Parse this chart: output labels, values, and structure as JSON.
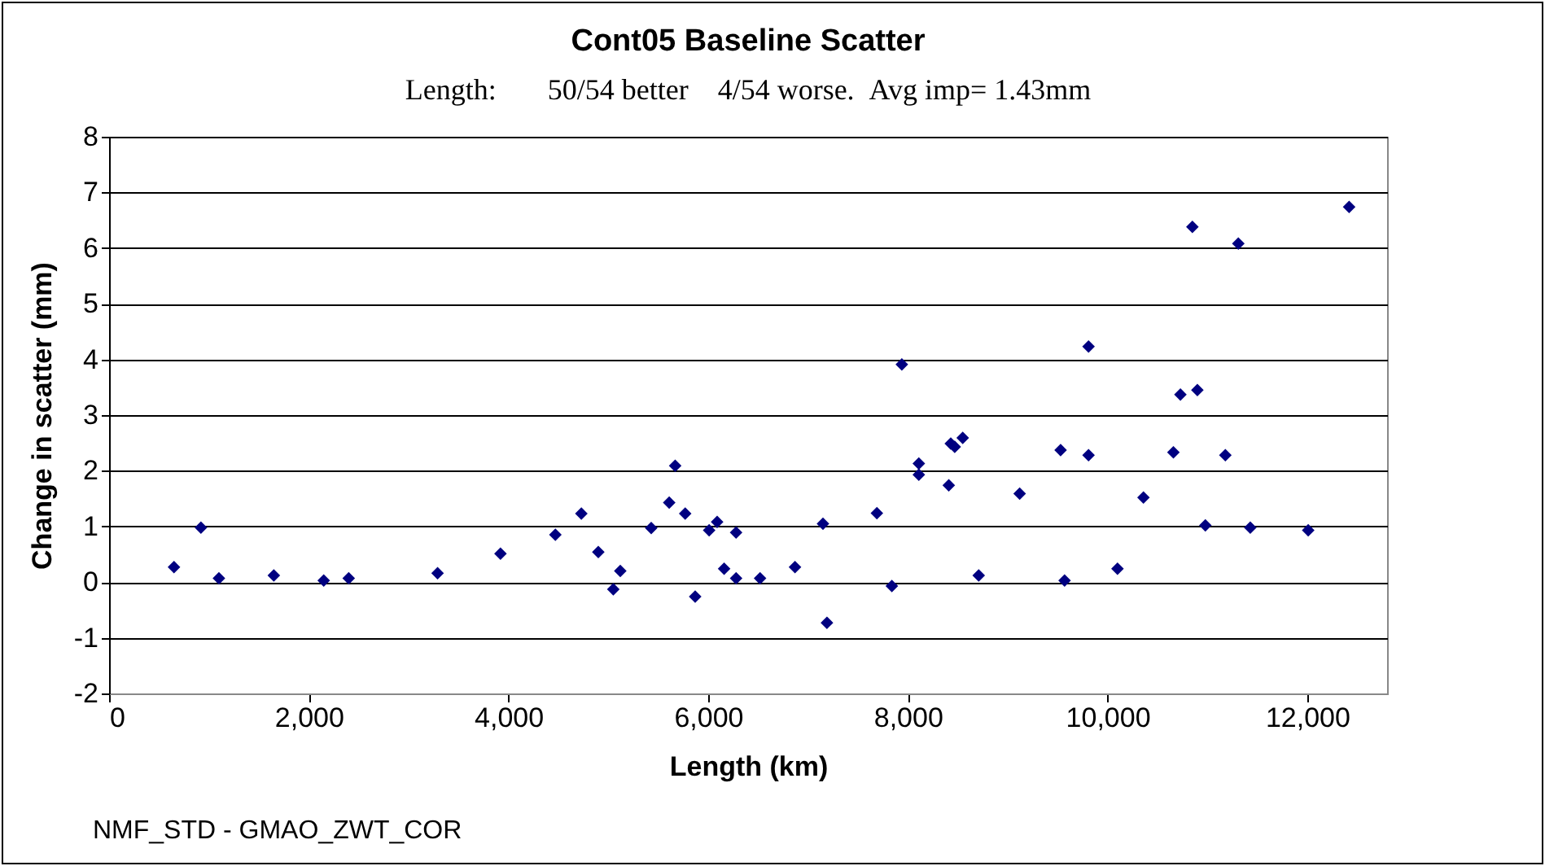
{
  "chart_data": {
    "type": "scatter",
    "title": "Cont05 Baseline Scatter",
    "subtitle": "Length:       50/54 better    4/54 worse.  Avg imp= 1.43mm",
    "xlabel": "Length (km)",
    "ylabel": "Change in scatter (mm)",
    "annotations": [
      "NMF_STD - GMAO_ZWT_COR"
    ],
    "x": [
      650,
      920,
      1100,
      1650,
      2150,
      2400,
      3290,
      3920,
      4470,
      4730,
      4900,
      5050,
      5120,
      5430,
      5610,
      5670,
      5770,
      5870,
      6010,
      6090,
      6160,
      6280,
      6280,
      6520,
      6870,
      7150,
      7190,
      7690,
      7840,
      7940,
      8110,
      8110,
      8410,
      8430,
      8470,
      8550,
      8710,
      9120,
      9530,
      9570,
      9810,
      9810,
      10100,
      10360,
      10660,
      10730,
      10850,
      10900,
      10980,
      11180,
      11310,
      11430,
      12010,
      12420
    ],
    "series": [
      {
        "color": "#000080",
        "values": [
          0.27,
          0.98,
          0.07,
          0.12,
          0.03,
          0.07,
          0.16,
          0.51,
          0.85,
          1.23,
          0.54,
          -0.13,
          0.2,
          0.97,
          1.43,
          2.09,
          1.23,
          -0.26,
          0.93,
          1.08,
          0.24,
          0.89,
          0.07,
          0.07,
          0.27,
          1.05,
          -0.73,
          1.24,
          -0.07,
          3.91,
          2.13,
          1.93,
          1.74,
          2.49,
          2.43,
          2.59,
          0.12,
          1.59,
          2.37,
          0.03,
          4.23,
          2.28,
          0.24,
          1.52,
          2.33,
          3.37,
          6.38,
          3.45,
          1.02,
          2.28,
          6.08,
          0.98,
          0.93,
          6.74
        ]
      }
    ],
    "xlim": [
      0,
      12800
    ],
    "xticks": [
      {
        "value": 0,
        "label": "0"
      },
      {
        "value": 2000,
        "label": "2,000"
      },
      {
        "value": 4000,
        "label": "4,000"
      },
      {
        "value": 6000,
        "label": "6,000"
      },
      {
        "value": 8000,
        "label": "8,000"
      },
      {
        "value": 10000,
        "label": "10,000"
      },
      {
        "value": 12000,
        "label": "12,000"
      }
    ],
    "ylim": [
      -2,
      8
    ],
    "yticks": [
      -2,
      -1,
      0,
      1,
      2,
      3,
      4,
      5,
      6,
      7,
      8
    ],
    "grid": "y",
    "marker": "diamond"
  }
}
